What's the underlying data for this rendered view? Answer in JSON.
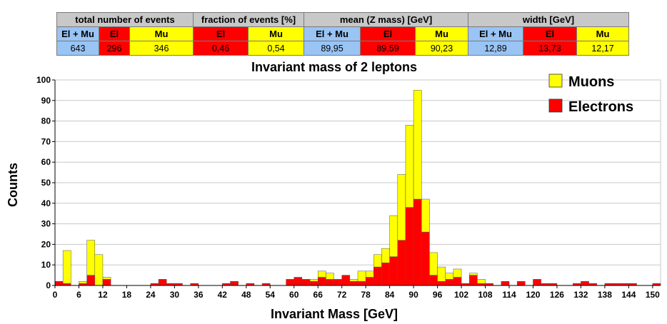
{
  "table": {
    "groups": [
      "total number of events",
      "fraction of events [%]",
      "mean (Z mass) [GeV]",
      "width [GeV]"
    ],
    "subheaders": [
      "El + Mu",
      "El",
      "Mu",
      "El",
      "Mu",
      "El + Mu",
      "El",
      "Mu",
      "El + Mu",
      "El",
      "Mu"
    ],
    "values": [
      "643",
      "296",
      "346",
      "0,46",
      "0,54",
      "89,95",
      "89,59",
      "90,23",
      "12,89",
      "13,73",
      "12,17"
    ]
  },
  "colors": {
    "electrons": "#ff0000",
    "muons": "#ffff00",
    "all": "#99c4f4"
  },
  "chart_data": {
    "type": "bar",
    "stacked": true,
    "title": "Invariant mass of 2 leptons",
    "xlabel": "Invariant Mass [GeV]",
    "ylabel": "Counts",
    "xlim": [
      0,
      152
    ],
    "ylim": [
      0,
      100
    ],
    "bin_width": 2,
    "x_ticks": [
      0,
      6,
      12,
      18,
      24,
      30,
      36,
      42,
      48,
      54,
      60,
      66,
      72,
      78,
      84,
      90,
      96,
      102,
      108,
      114,
      120,
      126,
      132,
      138,
      144,
      150
    ],
    "y_ticks": [
      0,
      10,
      20,
      30,
      40,
      50,
      60,
      70,
      80,
      90,
      100
    ],
    "grid": true,
    "legend_position": "top-right",
    "bins": [
      0,
      2,
      4,
      6,
      8,
      10,
      12,
      24,
      26,
      28,
      30,
      34,
      42,
      44,
      48,
      52,
      58,
      60,
      62,
      64,
      66,
      68,
      70,
      72,
      74,
      76,
      78,
      80,
      82,
      84,
      86,
      88,
      90,
      92,
      94,
      96,
      98,
      100,
      102,
      104,
      106,
      108,
      112,
      116,
      120,
      122,
      124,
      130,
      132,
      134,
      138,
      140,
      142,
      144,
      150
    ],
    "series": [
      {
        "name": "Electrons",
        "values": [
          2,
          1,
          0,
          1,
          5,
          0,
          3,
          1,
          3,
          1,
          1,
          1,
          1,
          2,
          1,
          1,
          3,
          4,
          3,
          2,
          4,
          3,
          3,
          5,
          2,
          2,
          4,
          9,
          11,
          14,
          22,
          38,
          42,
          26,
          5,
          2,
          3,
          4,
          1,
          5,
          1,
          1,
          2,
          2,
          3,
          1,
          1,
          1,
          2,
          1,
          1,
          1,
          1,
          1,
          1
        ]
      },
      {
        "name": "Muons",
        "values": [
          0,
          16,
          0,
          1,
          17,
          15,
          1,
          0,
          0,
          0,
          0,
          0,
          0,
          0,
          0,
          0,
          0,
          0,
          0,
          1,
          3,
          3,
          0,
          0,
          1,
          5,
          3,
          6,
          7,
          20,
          32,
          40,
          53,
          16,
          11,
          7,
          3,
          4,
          0,
          1,
          2,
          0,
          0,
          0,
          0,
          0,
          0,
          0,
          0,
          0,
          0,
          0,
          0,
          0,
          0
        ]
      }
    ]
  }
}
